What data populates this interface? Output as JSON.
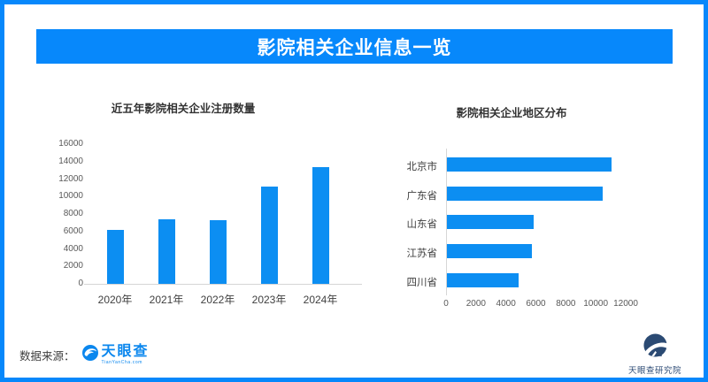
{
  "window": {
    "title": "影院相关企业信息一览"
  },
  "theme": {
    "frame_blue": "#0788fb",
    "bar_blue": "#0c8ef2",
    "logo_blue": "#0b87ee",
    "institute_navy": "#2f4d77"
  },
  "chart_data": [
    {
      "type": "bar",
      "orientation": "vertical",
      "title": "近五年影院相关企业注册数量",
      "categories": [
        "2020年",
        "2021年",
        "2022年",
        "2023年",
        "2024年"
      ],
      "values": [
        6200,
        7400,
        7300,
        11100,
        13400
      ],
      "xlabel": "",
      "ylabel": "",
      "ylim": [
        0,
        16000
      ],
      "yticks": [
        0,
        2000,
        4000,
        6000,
        8000,
        10000,
        12000,
        14000,
        16000
      ],
      "grid": false,
      "legend": false,
      "bar_color": "#0c8ef2"
    },
    {
      "type": "bar",
      "orientation": "horizontal",
      "title": "影院相关企业地区分布",
      "categories": [
        "北京市",
        "广东省",
        "山东省",
        "江苏省",
        "四川省"
      ],
      "values": [
        11000,
        10400,
        5800,
        5700,
        4800
      ],
      "xlabel": "",
      "ylabel": "",
      "xlim": [
        0,
        12000
      ],
      "xticks": [
        0,
        2000,
        4000,
        6000,
        8000,
        10000,
        12000
      ],
      "grid": false,
      "legend": false,
      "bar_color": "#0c8ef2"
    }
  ],
  "footer": {
    "source_label": "数据来源：",
    "tianyancha_logo": {
      "name": "天眼查",
      "domain": "TianYanCha.com"
    },
    "institute": {
      "name": "天眼查研究院"
    }
  }
}
